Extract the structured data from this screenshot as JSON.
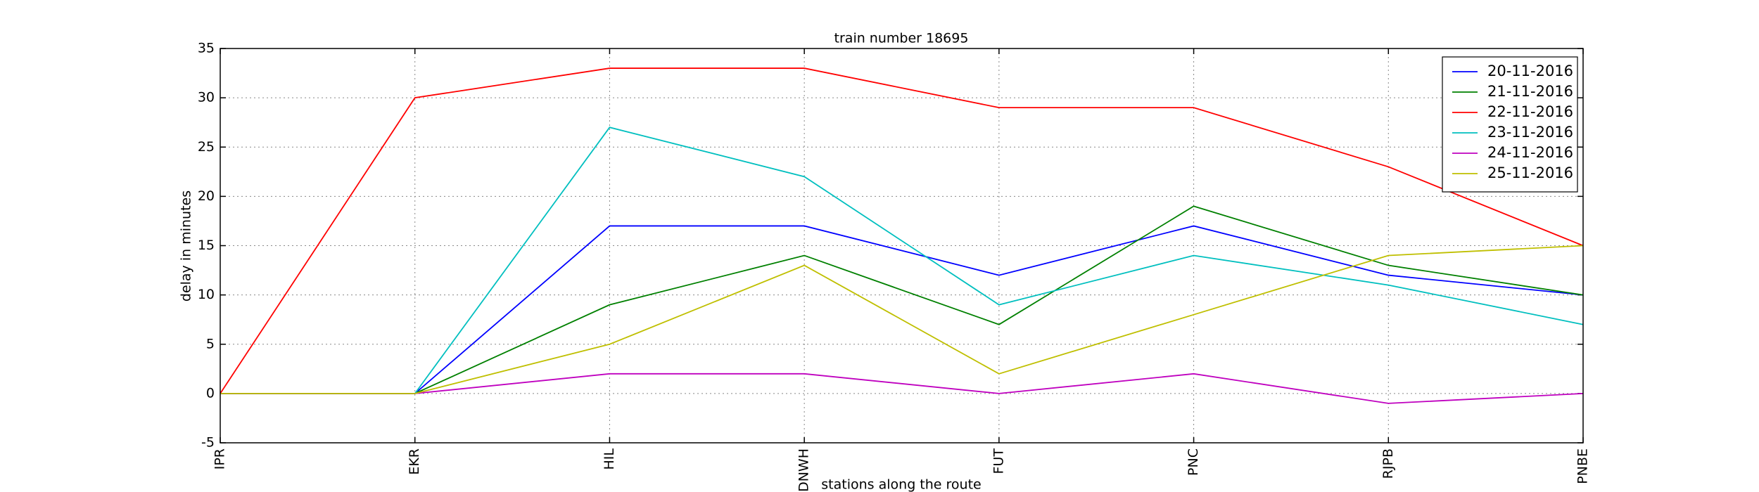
{
  "chart_data": {
    "type": "line",
    "title": "train number 18695",
    "x_label": "stations along the route",
    "y_label": "delay in minutes",
    "categories": [
      "IPR",
      "EKR",
      "HIL",
      "DNWH",
      "FUT",
      "PNC",
      "RJPB",
      "PNBE"
    ],
    "series": [
      {
        "name": "20-11-2016",
        "color": "#0000ff",
        "values": [
          0,
          0,
          17,
          17,
          12,
          17,
          12,
          10
        ]
      },
      {
        "name": "21-11-2016",
        "color": "#008000",
        "values": [
          0,
          0,
          9,
          14,
          7,
          19,
          13,
          10
        ]
      },
      {
        "name": "22-11-2016",
        "color": "#ff0000",
        "values": [
          0,
          30,
          33,
          33,
          29,
          29,
          23,
          15
        ]
      },
      {
        "name": "23-11-2016",
        "color": "#00bfbf",
        "values": [
          0,
          0,
          27,
          22,
          9,
          14,
          11,
          7
        ]
      },
      {
        "name": "24-11-2016",
        "color": "#bf00bf",
        "values": [
          0,
          0,
          2,
          2,
          0,
          2,
          -1,
          0
        ]
      },
      {
        "name": "25-11-2016",
        "color": "#bfbf00",
        "values": [
          0,
          0,
          5,
          13,
          2,
          8,
          14,
          15
        ]
      }
    ],
    "ylim": [
      -5,
      35
    ],
    "yticks": [
      -5,
      0,
      5,
      10,
      15,
      20,
      25,
      30,
      35
    ],
    "grid": true,
    "legend": "upper right"
  }
}
